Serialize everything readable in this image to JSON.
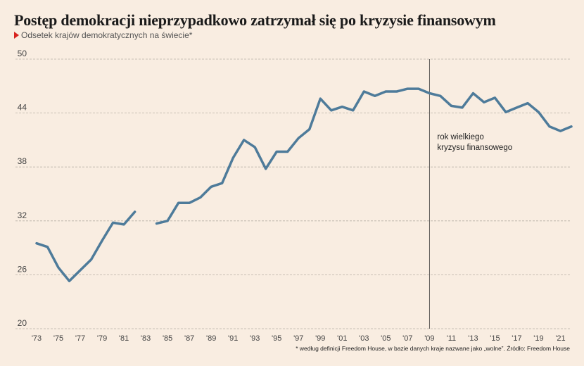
{
  "title": "Postęp demokracji nieprzypadkowo zatrzymał się po kryzysie finansowym",
  "subtitle": "Odsetek krajów demokratycznych na świecie*",
  "footnote": "* według definicji Freedom House, w bazie danych kraje nazwane jako „wolne”. Źródło: Freedom House",
  "colors": {
    "line": "#4e7b9a",
    "background": "#f9ede1",
    "marker": "#d7231e",
    "grid": "#b8b0a6"
  },
  "chart_data": {
    "type": "line",
    "title": "Postęp demokracji nieprzypadkowo zatrzymał się po kryzysie finansowym",
    "ylabel": "Odsetek krajów demokratycznych na świecie*",
    "ylim": [
      20,
      50
    ],
    "yticks": [
      20,
      26,
      32,
      38,
      44,
      50
    ],
    "xlim": [
      1973,
      2022
    ],
    "xtick_years": [
      1973,
      1975,
      1977,
      1979,
      1981,
      1983,
      1985,
      1987,
      1989,
      1991,
      1993,
      1995,
      1997,
      1999,
      2001,
      2003,
      2005,
      2007,
      2009,
      2011,
      2013,
      2015,
      2017,
      2019,
      2021
    ],
    "xtick_labels": [
      "'73",
      "'75",
      "'77",
      "'79",
      "'81",
      "'83",
      "'85",
      "'87",
      "'89",
      "'91",
      "'93",
      "'95",
      "'97",
      "'99",
      "'01",
      "'03",
      "'05",
      "'07",
      "'09",
      "'11",
      "'13",
      "'15",
      "'17",
      "'19",
      "'21"
    ],
    "grid": "horizontal dashed",
    "series": [
      {
        "segments": [
          {
            "x": [
              1973,
              1974,
              1975,
              1976,
              1977,
              1978,
              1979,
              1980,
              1981,
              1982
            ],
            "y": [
              29.5,
              29.1,
              26.8,
              25.3,
              26.5,
              27.7,
              29.8,
              31.8,
              31.6,
              33.0
            ]
          },
          {
            "x": [
              1984,
              1985,
              1986,
              1987,
              1988,
              1989,
              1990,
              1991,
              1992,
              1993,
              1994,
              1995,
              1996,
              1997,
              1998,
              1999,
              2000,
              2001,
              2002,
              2003,
              2004,
              2005,
              2006,
              2007,
              2008,
              2009,
              2010,
              2011,
              2012,
              2013,
              2014,
              2015,
              2016,
              2017,
              2018,
              2019,
              2020,
              2021,
              2022
            ],
            "y": [
              31.7,
              32.0,
              34.0,
              34.0,
              34.6,
              35.8,
              36.2,
              39.0,
              41.0,
              40.2,
              37.8,
              39.7,
              39.7,
              41.2,
              42.2,
              45.6,
              44.3,
              44.7,
              44.3,
              46.4,
              45.9,
              46.4,
              46.4,
              46.7,
              46.7,
              46.2,
              45.9,
              44.8,
              44.6,
              46.2,
              45.2,
              45.7,
              44.1,
              44.6,
              45.1,
              44.1,
              42.5,
              42.0,
              42.5
            ]
          }
        ]
      }
    ],
    "annotations": [
      {
        "x": 2009,
        "type": "vline",
        "text": [
          "rok wielkiego",
          "kryzysu finansowego"
        ]
      }
    ]
  }
}
